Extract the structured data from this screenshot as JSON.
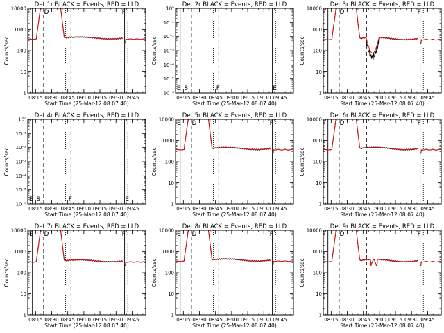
{
  "colors": {
    "events": "#000000",
    "lld": "#e01010",
    "background": "#ffffff"
  },
  "chart_data": [
    {
      "type": "line",
      "title": "Det 1r BLACK = Events, RED = LLD",
      "xlabel": "Start Time (25-Mar-12 08:07:40)",
      "ylabel": "Counts/sec",
      "x_ticks": [
        "08:15",
        "08:30",
        "08:45",
        "09:00",
        "09:15",
        "09:30",
        "09:45"
      ],
      "y_scale": "log",
      "ylim": [
        1,
        10000
      ],
      "y_ticks": [
        "1",
        "10",
        "100",
        "1000",
        "10000"
      ],
      "markers": [
        "D",
        "F"
      ],
      "baseline": 380,
      "dip": 0,
      "series": [
        {
          "name": "Events",
          "color": "#000000"
        },
        {
          "name": "LLD",
          "color": "#e01010"
        }
      ]
    },
    {
      "type": "line",
      "title": "Det 2r BLACK = Events, RED = LLD",
      "xlabel": "Start Time (25-Mar-12 08:07:40)",
      "ylabel": "Counts/sec",
      "x_ticks": [
        "08:15",
        "08:30",
        "08:45",
        "09:00",
        "09:15",
        "09:30",
        "09:45"
      ],
      "y_scale": "log",
      "ylim": [
        1e-06,
        1
      ],
      "y_ticks": [
        "10⁰",
        "10⁻¹",
        "10⁻²",
        "10⁻³",
        "10⁻⁴",
        "10⁻⁵",
        "10⁻⁶"
      ],
      "markers": [
        "E",
        "S",
        "F",
        "E"
      ],
      "empty": true,
      "series": [
        {
          "name": "Events",
          "color": "#000000"
        },
        {
          "name": "LLD",
          "color": "#e01010"
        }
      ]
    },
    {
      "type": "line",
      "title": "Det 3r BLACK = Events, RED = LLD",
      "xlabel": "Start Time (25-Mar-12 08:07:40)",
      "ylabel": "Counts/sec",
      "x_ticks": [
        "08:15",
        "08:30",
        "08:45",
        "09:00",
        "09:15",
        "09:30",
        "09:45"
      ],
      "y_scale": "log",
      "ylim": [
        1,
        10000
      ],
      "y_ticks": [
        "1",
        "10",
        "100",
        "1000",
        "10000"
      ],
      "markers": [
        "D",
        "F"
      ],
      "baseline": 360,
      "dip": 2,
      "series": [
        {
          "name": "Events",
          "color": "#000000"
        },
        {
          "name": "LLD",
          "color": "#e01010"
        }
      ]
    },
    {
      "type": "line",
      "title": "Det 4r BLACK = Events, RED = LLD",
      "xlabel": "Start Time (25-Mar-12 08:07:40)",
      "ylabel": "Counts/sec",
      "x_ticks": [
        "08:15",
        "08:30",
        "08:45",
        "09:00",
        "09:15",
        "09:30",
        "09:45"
      ],
      "y_scale": "log",
      "ylim": [
        1e-06,
        1
      ],
      "y_ticks": [
        "10⁰",
        "10⁻¹",
        "10⁻²",
        "10⁻³",
        "10⁻⁴",
        "10⁻⁵",
        "10⁻⁶"
      ],
      "markers": [
        "E",
        "S",
        "F",
        "E"
      ],
      "empty": true,
      "series": [
        {
          "name": "Events",
          "color": "#000000"
        },
        {
          "name": "LLD",
          "color": "#e01010"
        }
      ]
    },
    {
      "type": "line",
      "title": "Det 5r BLACK = Events, RED = LLD",
      "xlabel": "Start Time (25-Mar-12 08:07:40)",
      "ylabel": "Counts/sec",
      "x_ticks": [
        "08:15",
        "08:30",
        "08:45",
        "09:00",
        "09:15",
        "09:30",
        "09:45"
      ],
      "y_scale": "log",
      "ylim": [
        1,
        10000
      ],
      "y_ticks": [
        "1",
        "10",
        "100",
        "1000",
        "10000"
      ],
      "markers": [
        "E",
        "D",
        "F"
      ],
      "baseline": 400,
      "dip": 0,
      "series": [
        {
          "name": "Events",
          "color": "#000000"
        },
        {
          "name": "LLD",
          "color": "#e01010"
        }
      ]
    },
    {
      "type": "line",
      "title": "Det 6r BLACK = Events, RED = LLD",
      "xlabel": "Start Time (25-Mar-12 08:07:40)",
      "ylabel": "Counts/sec",
      "x_ticks": [
        "08:15",
        "08:30",
        "08:45",
        "09:00",
        "09:15",
        "09:30",
        "09:45"
      ],
      "y_scale": "log",
      "ylim": [
        1,
        10000
      ],
      "y_ticks": [
        "1",
        "10",
        "100",
        "1000",
        "10000"
      ],
      "markers": [
        "D",
        "F"
      ],
      "baseline": 400,
      "dip": 0,
      "series": [
        {
          "name": "Events",
          "color": "#000000"
        },
        {
          "name": "LLD",
          "color": "#e01010"
        }
      ]
    },
    {
      "type": "line",
      "title": "Det 7r BLACK = Events, RED = LLD",
      "xlabel": "Start Time (25-Mar-12 08:07:40)",
      "ylabel": "Counts/sec",
      "x_ticks": [
        "08:15",
        "08:30",
        "08:45",
        "09:00",
        "09:15",
        "09:30",
        "09:45"
      ],
      "y_scale": "log",
      "ylim": [
        1,
        10000
      ],
      "y_ticks": [
        "1",
        "10",
        "100",
        "1000",
        "10000"
      ],
      "markers": [
        "E",
        "D",
        "F"
      ],
      "baseline": 350,
      "dip": 0,
      "series": [
        {
          "name": "Events",
          "color": "#000000"
        },
        {
          "name": "LLD",
          "color": "#e01010"
        }
      ]
    },
    {
      "type": "line",
      "title": "Det 8r BLACK = Events, RED = LLD",
      "xlabel": "Start Time (25-Mar-12 08:07:40)",
      "ylabel": "Counts/sec",
      "x_ticks": [
        "08:15",
        "08:30",
        "08:45",
        "09:00",
        "09:15",
        "09:30",
        "09:45"
      ],
      "y_scale": "log",
      "ylim": [
        1,
        10000
      ],
      "y_ticks": [
        "1",
        "10",
        "100",
        "1000",
        "10000"
      ],
      "markers": [
        "E",
        "D",
        "F"
      ],
      "baseline": 380,
      "dip": 0,
      "series": [
        {
          "name": "Events",
          "color": "#000000"
        },
        {
          "name": "LLD",
          "color": "#e01010"
        }
      ]
    },
    {
      "type": "line",
      "title": "Det 9r BLACK = Events, RED = LLD",
      "xlabel": "Start Time (25-Mar-12 08:07:40)",
      "ylabel": "Counts/sec",
      "x_ticks": [
        "08:15",
        "08:30",
        "08:45",
        "09:00",
        "09:15",
        "09:30",
        "09:45"
      ],
      "y_scale": "log",
      "ylim": [
        1,
        10000
      ],
      "y_ticks": [
        "1",
        "10",
        "100",
        "1000",
        "10000"
      ],
      "markers": [
        "D",
        "F"
      ],
      "baseline": 360,
      "dip": 1,
      "series": [
        {
          "name": "Events",
          "color": "#000000"
        },
        {
          "name": "LLD",
          "color": "#e01010"
        }
      ]
    }
  ]
}
